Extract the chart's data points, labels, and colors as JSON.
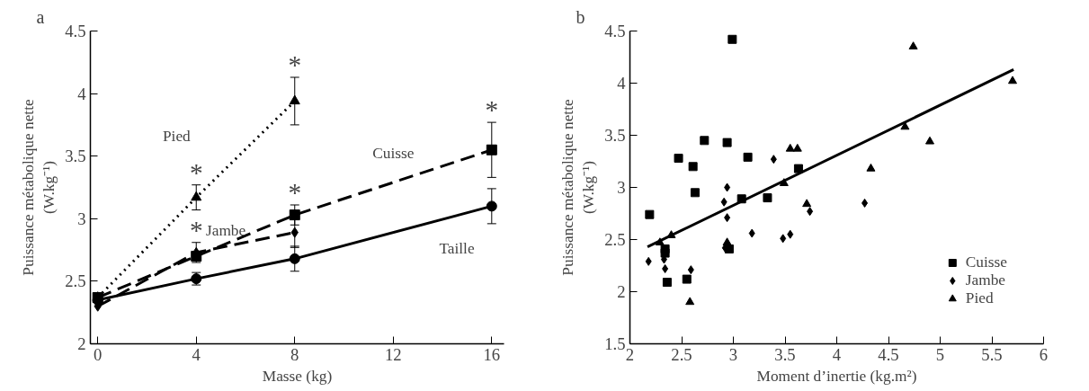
{
  "chart_data": [
    {
      "type": "line",
      "title": "a",
      "xlabel": "Masse (kg)",
      "ylabel": "Puissance métabolique nette\n(W.kg⁻¹)",
      "xlim": [
        -0.3,
        16.5
      ],
      "xticks": [
        0,
        4,
        8,
        12,
        16
      ],
      "ylim": [
        2.0,
        4.5
      ],
      "yticks": [
        2.0,
        2.5,
        3.0,
        3.5,
        4.0,
        4.5
      ],
      "grid": false,
      "legend": false,
      "series": [
        {
          "name": "Pied",
          "color": "#000000",
          "marker": "triangle",
          "line_style": "dotted",
          "x": [
            0,
            4,
            8
          ],
          "values": [
            2.37,
            3.17,
            3.94
          ],
          "errors": [
            null,
            0.1,
            0.19
          ]
        },
        {
          "name": "Cuisse",
          "color": "#000000",
          "marker": "square",
          "line_style": "dashed",
          "x": [
            0,
            4,
            8,
            16
          ],
          "values": [
            2.37,
            2.7,
            3.03,
            3.55
          ],
          "errors": [
            null,
            null,
            0.08,
            0.22
          ]
        },
        {
          "name": "Jambe",
          "color": "#000000",
          "marker": "diamond",
          "line_style": "dashed",
          "x": [
            0,
            4,
            8
          ],
          "values": [
            2.3,
            2.73,
            2.89
          ],
          "errors": [
            null,
            0.08,
            0.12
          ]
        },
        {
          "name": "Taille",
          "color": "#000000",
          "marker": "circle",
          "line_style": "solid",
          "x": [
            0,
            4,
            8,
            16
          ],
          "values": [
            2.35,
            2.52,
            2.68,
            3.1
          ],
          "errors": [
            null,
            0.05,
            0.1,
            0.14
          ]
        }
      ],
      "annotations": [
        "*",
        "*",
        "*",
        "*",
        "*"
      ]
    },
    {
      "type": "scatter",
      "title": "b",
      "xlabel": "Moment d’inertie (kg.m²)",
      "ylabel": "Puissance métabolique nette\n(W.kg⁻¹)",
      "xlim": [
        2.0,
        6.0
      ],
      "xticks": [
        2.0,
        2.5,
        3.0,
        3.5,
        4.0,
        4.5,
        5.0,
        5.5,
        6.0
      ],
      "ylim": [
        1.5,
        4.5
      ],
      "yticks": [
        1.5,
        2.0,
        2.5,
        3.0,
        3.5,
        4.0,
        4.5
      ],
      "grid": false,
      "legend": "bottom right",
      "series": [
        {
          "name": "Cuisse",
          "color": "#000000",
          "marker": "square",
          "x": [
            2.19,
            2.47,
            2.61,
            2.63,
            2.72,
            2.94,
            2.99,
            3.14,
            3.08,
            3.33,
            3.63,
            2.34,
            2.34,
            2.36,
            2.55,
            2.96
          ],
          "values": [
            2.74,
            3.28,
            3.2,
            2.95,
            3.45,
            3.43,
            4.42,
            3.29,
            2.89,
            2.9,
            3.18,
            2.41,
            2.37,
            2.09,
            2.12,
            2.41
          ]
        },
        {
          "name": "Jambe",
          "color": "#000000",
          "marker": "diamond",
          "x": [
            2.18,
            2.33,
            2.34,
            2.59,
            2.91,
            2.94,
            2.94,
            2.92,
            3.18,
            3.39,
            3.48,
            3.55,
            3.74,
            4.27
          ],
          "values": [
            2.29,
            2.31,
            2.22,
            2.21,
            2.86,
            3.0,
            2.71,
            2.42,
            2.56,
            3.27,
            2.51,
            2.55,
            2.77,
            2.85
          ]
        },
        {
          "name": "Pied",
          "color": "#000000",
          "marker": "triangle",
          "x": [
            2.29,
            2.4,
            2.58,
            2.94,
            3.49,
            3.55,
            3.62,
            3.71,
            4.33,
            4.66,
            4.74,
            4.9,
            5.7
          ],
          "values": [
            2.47,
            2.54,
            1.9,
            2.47,
            3.04,
            3.37,
            3.37,
            2.84,
            3.18,
            3.58,
            4.35,
            3.44,
            4.02
          ]
        },
        {
          "type": "line",
          "color": "#000000",
          "line_style": "solid",
          "x": [
            2.17,
            5.71
          ],
          "values": [
            2.43,
            4.13
          ]
        }
      ]
    }
  ]
}
